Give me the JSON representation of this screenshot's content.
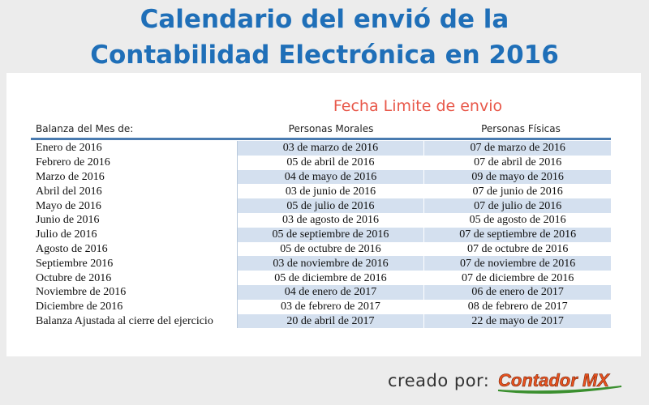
{
  "title_line1": "Calendario del envió de la",
  "title_line2": "Contabilidad Electrónica en 2016",
  "section_title": "Fecha Limite de envio",
  "headers": {
    "month": "Balanza del Mes de:",
    "morales": "Personas Morales",
    "fisicas": "Personas Físicas"
  },
  "rows": [
    {
      "month": "Enero de 2016",
      "morales": "03 de marzo de 2016",
      "fisicas": "07 de marzo de 2016"
    },
    {
      "month": "Febrero de 2016",
      "morales": "05 de abril de 2016",
      "fisicas": "07 de abril de 2016"
    },
    {
      "month": "Marzo de 2016",
      "morales": "04 de mayo de 2016",
      "fisicas": "09 de mayo de 2016"
    },
    {
      "month": "Abril del 2016",
      "morales": "03 de junio de 2016",
      "fisicas": "07 de junio de 2016"
    },
    {
      "month": "Mayo de 2016",
      "morales": "05 de julio de 2016",
      "fisicas": "07 de julio de 2016"
    },
    {
      "month": "Junio de 2016",
      "morales": "03 de agosto de 2016",
      "fisicas": "05 de agosto de 2016"
    },
    {
      "month": "Julio de 2016",
      "morales": "05 de septiembre de 2016",
      "fisicas": "07 de septiembre de 2016"
    },
    {
      "month": "Agosto de 2016",
      "morales": "05 de octubre de 2016",
      "fisicas": "07 de octubre de 2016"
    },
    {
      "month": "Septiembre 2016",
      "morales": "03 de noviembre de 2016",
      "fisicas": "07 de noviembre de 2016"
    },
    {
      "month": "Octubre de 2016",
      "morales": "05 de diciembre de 2016",
      "fisicas": "07 de diciembre de 2016"
    },
    {
      "month": "Noviembre de 2016",
      "morales": "04 de enero de 2017",
      "fisicas": "06 de enero de 2017"
    },
    {
      "month": "Diciembre de 2016",
      "morales": "03 de febrero de 2017",
      "fisicas": "08 de febrero de 2017"
    },
    {
      "month": "Balanza Ajustada al cierre del ejercicio",
      "morales": "20 de abril de 2017",
      "fisicas": "22 de mayo de 2017"
    }
  ],
  "footer": {
    "created_by": "creado por:",
    "logo_text": "Contador MX"
  },
  "colors": {
    "title": "#1f6fb8",
    "section_title": "#e8584a",
    "stripe": "#d4e0ef",
    "logo_text": "#e8521f",
    "logo_swoosh": "#3a8f2e"
  }
}
